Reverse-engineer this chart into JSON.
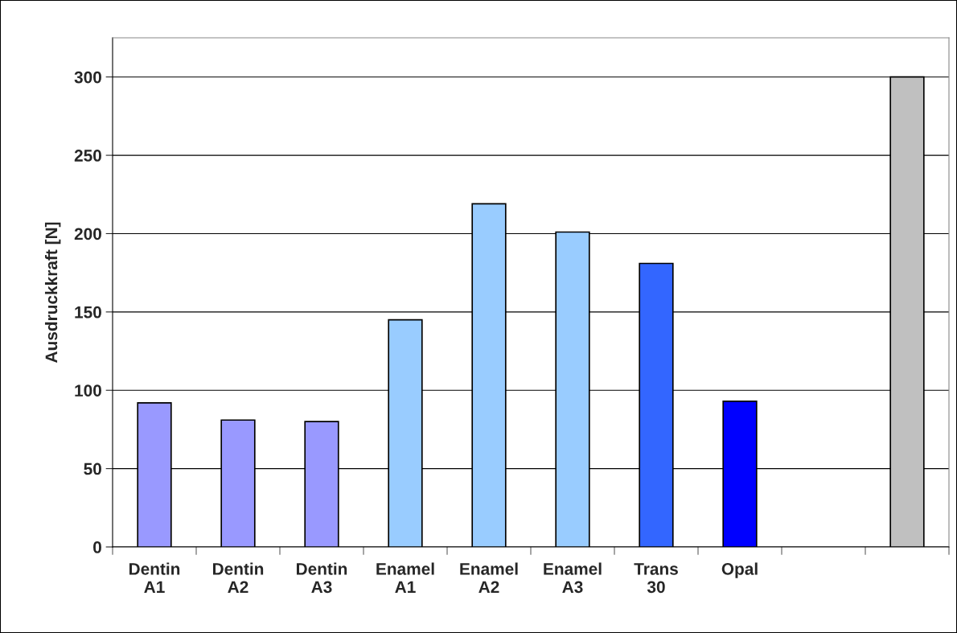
{
  "chart_data": {
    "type": "bar",
    "ylabel": "Ausdruckkraft [N]",
    "categories": [
      "Dentin\nA1",
      "Dentin\nA2",
      "Dentin\nA3",
      "Enamel\nA1",
      "Enamel\nA2",
      "Enamel\nA3",
      "Trans\n30",
      "Opal",
      null,
      null
    ],
    "values": [
      92,
      81,
      80,
      145,
      219,
      201,
      181,
      93,
      null,
      300
    ],
    "colors": [
      "#9999ff",
      "#9999ff",
      "#9999ff",
      "#99ccff",
      "#99ccff",
      "#99ccff",
      "#3366ff",
      "#0000ff",
      "#c0c0c0",
      "#c0c0c0"
    ],
    "ylim": [
      0,
      325
    ],
    "yticks": [
      0,
      50,
      100,
      150,
      200,
      250,
      300
    ],
    "grid": "y"
  }
}
